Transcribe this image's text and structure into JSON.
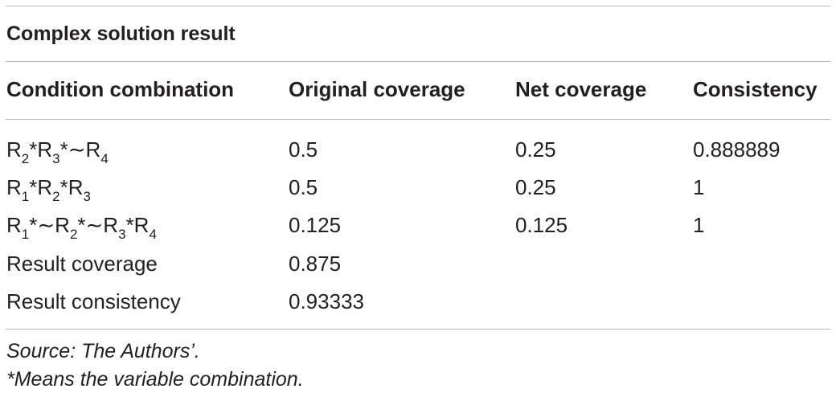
{
  "table": {
    "title": "Complex solution result",
    "headers": [
      "Condition combination",
      "Original coverage",
      "Net coverage",
      "Consistency"
    ],
    "rows": [
      {
        "condition": [
          [
            "R",
            "2"
          ],
          [
            "*R",
            "3"
          ],
          [
            "*∼R",
            "4"
          ]
        ],
        "original_coverage": "0.5",
        "net_coverage": "0.25",
        "consistency": "0.888889"
      },
      {
        "condition": [
          [
            "R",
            "1"
          ],
          [
            "*R",
            "2"
          ],
          [
            "*R",
            "3"
          ]
        ],
        "original_coverage": "0.5",
        "net_coverage": "0.25",
        "consistency": "1"
      },
      {
        "condition": [
          [
            "R",
            "1"
          ],
          [
            "*∼R",
            "2"
          ],
          [
            "*∼R",
            "3"
          ],
          [
            "*R",
            "4"
          ]
        ],
        "original_coverage": "0.125",
        "net_coverage": "0.125",
        "consistency": "1"
      }
    ],
    "summary": [
      {
        "label": "Result coverage",
        "value": "0.875"
      },
      {
        "label": "Result consistency",
        "value": "0.93333"
      }
    ],
    "footnotes": [
      "Source: The Authors’.",
      "*Means the variable combination."
    ]
  }
}
